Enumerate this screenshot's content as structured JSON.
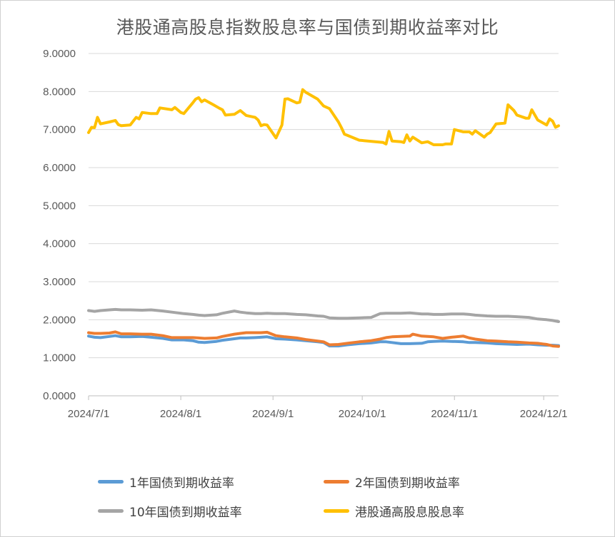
{
  "chart_data": {
    "type": "line",
    "title": "港股通高股息指数股息率与国债到期收益率对比",
    "xlabel": "",
    "ylabel": "",
    "ylim": [
      0,
      9
    ],
    "y_ticks": [
      "0.0000",
      "1.0000",
      "2.0000",
      "3.0000",
      "4.0000",
      "5.0000",
      "6.0000",
      "7.0000",
      "8.0000",
      "9.0000"
    ],
    "x_range": [
      "2024-07-01",
      "2024-12-06"
    ],
    "x_ticks": [
      {
        "date": "2024-07-01",
        "label": "2024/7/1"
      },
      {
        "date": "2024-08-01",
        "label": "2024/8/1"
      },
      {
        "date": "2024-09-01",
        "label": "2024/9/1"
      },
      {
        "date": "2024-10-01",
        "label": "2024/10/1"
      },
      {
        "date": "2024-11-01",
        "label": "2024/11/1"
      },
      {
        "date": "2024-12-01",
        "label": "2024/12/1"
      }
    ],
    "grid": "horizontal",
    "legend_position": "bottom",
    "series": [
      {
        "name": "1年国债到期收益率",
        "color": "#5B9BD5",
        "points": [
          [
            "2024-07-01",
            1.57
          ],
          [
            "2024-07-03",
            1.54
          ],
          [
            "2024-07-05",
            1.53
          ],
          [
            "2024-07-08",
            1.56
          ],
          [
            "2024-07-10",
            1.58
          ],
          [
            "2024-07-12",
            1.55
          ],
          [
            "2024-07-15",
            1.55
          ],
          [
            "2024-07-19",
            1.56
          ],
          [
            "2024-07-22",
            1.54
          ],
          [
            "2024-07-26",
            1.51
          ],
          [
            "2024-07-29",
            1.47
          ],
          [
            "2024-08-02",
            1.47
          ],
          [
            "2024-08-05",
            1.45
          ],
          [
            "2024-08-07",
            1.41
          ],
          [
            "2024-08-09",
            1.4
          ],
          [
            "2024-08-13",
            1.43
          ],
          [
            "2024-08-15",
            1.46
          ],
          [
            "2024-08-19",
            1.5
          ],
          [
            "2024-08-21",
            1.52
          ],
          [
            "2024-08-23",
            1.52
          ],
          [
            "2024-08-26",
            1.53
          ],
          [
            "2024-08-28",
            1.54
          ],
          [
            "2024-08-30",
            1.55
          ],
          [
            "2024-09-02",
            1.5
          ],
          [
            "2024-09-05",
            1.49
          ],
          [
            "2024-09-09",
            1.47
          ],
          [
            "2024-09-12",
            1.45
          ],
          [
            "2024-09-16",
            1.42
          ],
          [
            "2024-09-18",
            1.4
          ],
          [
            "2024-09-20",
            1.31
          ],
          [
            "2024-09-23",
            1.31
          ],
          [
            "2024-09-26",
            1.34
          ],
          [
            "2024-09-30",
            1.37
          ],
          [
            "2024-10-04",
            1.39
          ],
          [
            "2024-10-07",
            1.42
          ],
          [
            "2024-10-09",
            1.42
          ],
          [
            "2024-10-11",
            1.4
          ],
          [
            "2024-10-14",
            1.37
          ],
          [
            "2024-10-17",
            1.37
          ],
          [
            "2024-10-21",
            1.38
          ],
          [
            "2024-10-23",
            1.42
          ],
          [
            "2024-10-25",
            1.43
          ],
          [
            "2024-10-28",
            1.44
          ],
          [
            "2024-10-31",
            1.43
          ],
          [
            "2024-11-04",
            1.42
          ],
          [
            "2024-11-06",
            1.4
          ],
          [
            "2024-11-08",
            1.4
          ],
          [
            "2024-11-12",
            1.39
          ],
          [
            "2024-11-15",
            1.37
          ],
          [
            "2024-11-19",
            1.36
          ],
          [
            "2024-11-22",
            1.35
          ],
          [
            "2024-11-26",
            1.36
          ],
          [
            "2024-11-29",
            1.34
          ],
          [
            "2024-12-02",
            1.33
          ],
          [
            "2024-12-04",
            1.33
          ],
          [
            "2024-12-06",
            1.32
          ]
        ]
      },
      {
        "name": "2年国债到期收益率",
        "color": "#ED7D31",
        "points": [
          [
            "2024-07-01",
            1.66
          ],
          [
            "2024-07-03",
            1.64
          ],
          [
            "2024-07-05",
            1.64
          ],
          [
            "2024-07-08",
            1.65
          ],
          [
            "2024-07-10",
            1.68
          ],
          [
            "2024-07-12",
            1.63
          ],
          [
            "2024-07-15",
            1.63
          ],
          [
            "2024-07-19",
            1.62
          ],
          [
            "2024-07-22",
            1.62
          ],
          [
            "2024-07-26",
            1.58
          ],
          [
            "2024-07-29",
            1.53
          ],
          [
            "2024-08-02",
            1.53
          ],
          [
            "2024-08-05",
            1.53
          ],
          [
            "2024-08-07",
            1.52
          ],
          [
            "2024-08-09",
            1.51
          ],
          [
            "2024-08-13",
            1.52
          ],
          [
            "2024-08-15",
            1.56
          ],
          [
            "2024-08-19",
            1.62
          ],
          [
            "2024-08-21",
            1.64
          ],
          [
            "2024-08-23",
            1.66
          ],
          [
            "2024-08-26",
            1.66
          ],
          [
            "2024-08-28",
            1.66
          ],
          [
            "2024-08-30",
            1.67
          ],
          [
            "2024-09-02",
            1.58
          ],
          [
            "2024-09-05",
            1.55
          ],
          [
            "2024-09-09",
            1.52
          ],
          [
            "2024-09-12",
            1.48
          ],
          [
            "2024-09-16",
            1.44
          ],
          [
            "2024-09-18",
            1.42
          ],
          [
            "2024-09-20",
            1.34
          ],
          [
            "2024-09-23",
            1.35
          ],
          [
            "2024-09-26",
            1.38
          ],
          [
            "2024-09-30",
            1.42
          ],
          [
            "2024-10-04",
            1.45
          ],
          [
            "2024-10-07",
            1.49
          ],
          [
            "2024-10-09",
            1.53
          ],
          [
            "2024-10-11",
            1.55
          ],
          [
            "2024-10-14",
            1.56
          ],
          [
            "2024-10-17",
            1.57
          ],
          [
            "2024-10-18",
            1.62
          ],
          [
            "2024-10-21",
            1.57
          ],
          [
            "2024-10-23",
            1.56
          ],
          [
            "2024-10-25",
            1.55
          ],
          [
            "2024-10-28",
            1.51
          ],
          [
            "2024-10-31",
            1.54
          ],
          [
            "2024-11-04",
            1.57
          ],
          [
            "2024-11-06",
            1.52
          ],
          [
            "2024-11-08",
            1.49
          ],
          [
            "2024-11-12",
            1.45
          ],
          [
            "2024-11-15",
            1.44
          ],
          [
            "2024-11-19",
            1.42
          ],
          [
            "2024-11-22",
            1.41
          ],
          [
            "2024-11-26",
            1.39
          ],
          [
            "2024-11-29",
            1.38
          ],
          [
            "2024-12-02",
            1.35
          ],
          [
            "2024-12-04",
            1.31
          ],
          [
            "2024-12-06",
            1.3
          ]
        ]
      },
      {
        "name": "10年国债到期收益率",
        "color": "#A5A5A5",
        "points": [
          [
            "2024-07-01",
            2.24
          ],
          [
            "2024-07-03",
            2.22
          ],
          [
            "2024-07-05",
            2.24
          ],
          [
            "2024-07-08",
            2.26
          ],
          [
            "2024-07-10",
            2.27
          ],
          [
            "2024-07-12",
            2.26
          ],
          [
            "2024-07-15",
            2.26
          ],
          [
            "2024-07-19",
            2.25
          ],
          [
            "2024-07-22",
            2.26
          ],
          [
            "2024-07-26",
            2.23
          ],
          [
            "2024-07-29",
            2.2
          ],
          [
            "2024-08-02",
            2.16
          ],
          [
            "2024-08-05",
            2.14
          ],
          [
            "2024-08-07",
            2.12
          ],
          [
            "2024-08-09",
            2.11
          ],
          [
            "2024-08-13",
            2.13
          ],
          [
            "2024-08-15",
            2.17
          ],
          [
            "2024-08-19",
            2.23
          ],
          [
            "2024-08-21",
            2.2
          ],
          [
            "2024-08-23",
            2.18
          ],
          [
            "2024-08-26",
            2.16
          ],
          [
            "2024-08-28",
            2.16
          ],
          [
            "2024-08-30",
            2.17
          ],
          [
            "2024-09-02",
            2.16
          ],
          [
            "2024-09-05",
            2.16
          ],
          [
            "2024-09-09",
            2.14
          ],
          [
            "2024-09-12",
            2.13
          ],
          [
            "2024-09-16",
            2.1
          ],
          [
            "2024-09-18",
            2.09
          ],
          [
            "2024-09-20",
            2.05
          ],
          [
            "2024-09-23",
            2.04
          ],
          [
            "2024-09-26",
            2.04
          ],
          [
            "2024-09-30",
            2.05
          ],
          [
            "2024-10-04",
            2.06
          ],
          [
            "2024-10-07",
            2.16
          ],
          [
            "2024-10-09",
            2.17
          ],
          [
            "2024-10-11",
            2.17
          ],
          [
            "2024-10-14",
            2.17
          ],
          [
            "2024-10-17",
            2.18
          ],
          [
            "2024-10-21",
            2.15
          ],
          [
            "2024-10-23",
            2.15
          ],
          [
            "2024-10-25",
            2.14
          ],
          [
            "2024-10-28",
            2.14
          ],
          [
            "2024-10-31",
            2.15
          ],
          [
            "2024-11-04",
            2.15
          ],
          [
            "2024-11-06",
            2.14
          ],
          [
            "2024-11-08",
            2.12
          ],
          [
            "2024-11-12",
            2.1
          ],
          [
            "2024-11-15",
            2.09
          ],
          [
            "2024-11-19",
            2.09
          ],
          [
            "2024-11-22",
            2.08
          ],
          [
            "2024-11-26",
            2.06
          ],
          [
            "2024-11-29",
            2.02
          ],
          [
            "2024-12-02",
            2.0
          ],
          [
            "2024-12-04",
            1.98
          ],
          [
            "2024-12-06",
            1.95
          ]
        ]
      },
      {
        "name": "港股通高股息股息率",
        "color": "#FFC000",
        "points": [
          [
            "2024-07-01",
            6.92
          ],
          [
            "2024-07-02",
            7.06
          ],
          [
            "2024-07-03",
            7.05
          ],
          [
            "2024-07-04",
            7.32
          ],
          [
            "2024-07-05",
            7.15
          ],
          [
            "2024-07-08",
            7.2
          ],
          [
            "2024-07-10",
            7.24
          ],
          [
            "2024-07-11",
            7.13
          ],
          [
            "2024-07-12",
            7.1
          ],
          [
            "2024-07-15",
            7.12
          ],
          [
            "2024-07-17",
            7.32
          ],
          [
            "2024-07-18",
            7.28
          ],
          [
            "2024-07-19",
            7.45
          ],
          [
            "2024-07-22",
            7.42
          ],
          [
            "2024-07-24",
            7.42
          ],
          [
            "2024-07-25",
            7.57
          ],
          [
            "2024-07-29",
            7.52
          ],
          [
            "2024-07-30",
            7.58
          ],
          [
            "2024-08-01",
            7.45
          ],
          [
            "2024-08-02",
            7.42
          ],
          [
            "2024-08-05",
            7.7
          ],
          [
            "2024-08-06",
            7.8
          ],
          [
            "2024-08-07",
            7.84
          ],
          [
            "2024-08-08",
            7.73
          ],
          [
            "2024-08-09",
            7.78
          ],
          [
            "2024-08-12",
            7.65
          ],
          [
            "2024-08-14",
            7.56
          ],
          [
            "2024-08-15",
            7.52
          ],
          [
            "2024-08-16",
            7.38
          ],
          [
            "2024-08-19",
            7.4
          ],
          [
            "2024-08-21",
            7.5
          ],
          [
            "2024-08-23",
            7.37
          ],
          [
            "2024-08-26",
            7.32
          ],
          [
            "2024-08-27",
            7.25
          ],
          [
            "2024-08-28",
            7.1
          ],
          [
            "2024-08-29",
            7.13
          ],
          [
            "2024-08-30",
            7.12
          ],
          [
            "2024-09-02",
            6.78
          ],
          [
            "2024-09-04",
            7.12
          ],
          [
            "2024-09-05",
            7.8
          ],
          [
            "2024-09-06",
            7.81
          ],
          [
            "2024-09-09",
            7.7
          ],
          [
            "2024-09-10",
            7.72
          ],
          [
            "2024-09-11",
            8.05
          ],
          [
            "2024-09-12",
            7.98
          ],
          [
            "2024-09-16",
            7.8
          ],
          [
            "2024-09-18",
            7.62
          ],
          [
            "2024-09-20",
            7.55
          ],
          [
            "2024-09-23",
            7.2
          ],
          [
            "2024-09-24",
            7.05
          ],
          [
            "2024-09-25",
            6.88
          ],
          [
            "2024-09-26",
            6.85
          ],
          [
            "2024-09-30",
            6.72
          ],
          [
            "2024-10-08",
            6.66
          ],
          [
            "2024-10-09",
            6.62
          ],
          [
            "2024-10-10",
            6.95
          ],
          [
            "2024-10-11",
            6.7
          ],
          [
            "2024-10-14",
            6.68
          ],
          [
            "2024-10-15",
            6.66
          ],
          [
            "2024-10-16",
            6.86
          ],
          [
            "2024-10-17",
            6.7
          ],
          [
            "2024-10-18",
            6.8
          ],
          [
            "2024-10-21",
            6.65
          ],
          [
            "2024-10-23",
            6.68
          ],
          [
            "2024-10-25",
            6.6
          ],
          [
            "2024-10-28",
            6.6
          ],
          [
            "2024-10-29",
            6.62
          ],
          [
            "2024-10-31",
            6.62
          ],
          [
            "2024-11-01",
            7.0
          ],
          [
            "2024-11-04",
            6.94
          ],
          [
            "2024-11-06",
            6.94
          ],
          [
            "2024-11-07",
            6.88
          ],
          [
            "2024-11-08",
            6.97
          ],
          [
            "2024-11-11",
            6.8
          ],
          [
            "2024-11-12",
            6.88
          ],
          [
            "2024-11-13",
            6.92
          ],
          [
            "2024-11-15",
            7.15
          ],
          [
            "2024-11-18",
            7.17
          ],
          [
            "2024-11-19",
            7.65
          ],
          [
            "2024-11-21",
            7.5
          ],
          [
            "2024-11-22",
            7.38
          ],
          [
            "2024-11-25",
            7.3
          ],
          [
            "2024-11-26",
            7.3
          ],
          [
            "2024-11-27",
            7.52
          ],
          [
            "2024-11-29",
            7.25
          ],
          [
            "2024-12-02",
            7.12
          ],
          [
            "2024-12-03",
            7.28
          ],
          [
            "2024-12-04",
            7.22
          ],
          [
            "2024-12-05",
            7.06
          ],
          [
            "2024-12-06",
            7.1
          ]
        ]
      }
    ]
  }
}
